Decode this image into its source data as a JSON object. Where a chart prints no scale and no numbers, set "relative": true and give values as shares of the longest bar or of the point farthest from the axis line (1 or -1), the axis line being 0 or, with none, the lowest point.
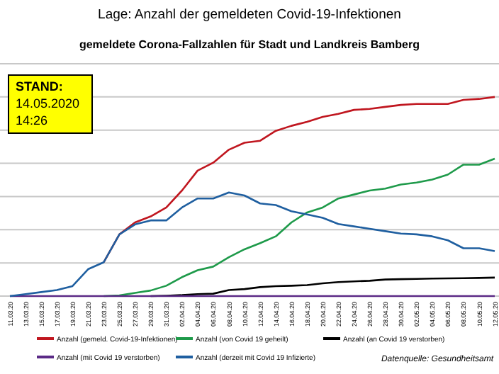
{
  "chart_data": {
    "type": "line",
    "title": "Lage: Anzahl der gemeldeten Covid-19-Infektionen",
    "subtitle": "gemeldete Corona-Fallzahlen für Stadt und Landkreis Bamberg",
    "categories": [
      "11.03.20",
      "13.03.20",
      "15.03.20",
      "17.03.20",
      "19.03.20",
      "21.03.20",
      "23.03.20",
      "25.03.20",
      "27.03.20",
      "29.03.20",
      "31.03.20",
      "02.04.20",
      "04.04.20",
      "06.04.20",
      "08.04.20",
      "10.04.20",
      "12.04.20",
      "14.04.20",
      "16.04.20",
      "18.04.20",
      "20.04.20",
      "22.04.20",
      "24.04.20",
      "26.04.20",
      "28.04.20",
      "30.04.20",
      "02.05.20",
      "04.05.20",
      "06.05.20",
      "08.05.20",
      "10.05.20",
      "12.05.20"
    ],
    "relative": true,
    "grid": "y",
    "legend": "bottom",
    "marker": "none",
    "line_style": "solid",
    "series": [
      {
        "name": "Anzahl (gemeld. Covid-19-Infektionen)",
        "color": "#c0161f",
        "values": [
          null,
          null,
          null,
          null,
          null,
          null,
          0.17,
          0.31,
          0.37,
          0.4,
          0.445,
          0.53,
          0.63,
          0.67,
          0.735,
          0.77,
          0.78,
          0.83,
          0.855,
          0.875,
          0.9,
          0.915,
          0.935,
          0.94,
          0.95,
          0.96,
          0.965,
          0.965,
          0.965,
          0.985,
          0.99,
          1
        ]
      },
      {
        "name": "Anzahl (von Covid 19 geheilt)",
        "color": "#1e9a4a",
        "values": [
          null,
          null,
          null,
          null,
          null,
          null,
          0,
          0.003,
          0.016,
          0.028,
          0.052,
          0.095,
          0.13,
          0.148,
          0.195,
          0.235,
          0.266,
          0.3,
          0.37,
          0.42,
          0.445,
          0.49,
          0.51,
          0.53,
          0.54,
          0.56,
          0.57,
          0.585,
          0.61,
          0.66,
          0.66,
          0.69
        ]
      },
      {
        "name": "Anzahl (an Covid 19 verstorben)",
        "color": "#000000",
        "values": [
          null,
          null,
          null,
          null,
          null,
          null,
          null,
          null,
          null,
          0,
          0.002,
          0.005,
          0.01,
          0.012,
          0.03,
          0.035,
          0.045,
          0.05,
          0.052,
          0.055,
          0.064,
          0.07,
          0.074,
          0.077,
          0.083,
          0.085,
          0.086,
          0.088,
          0.089,
          0.09,
          0.091,
          0.093
        ]
      },
      {
        "name": "Anzahl (mit Covid 19 verstorben)",
        "color": "#5b2a86",
        "values": [
          0,
          0,
          0,
          0,
          0,
          0,
          0,
          0,
          0,
          0,
          0,
          0,
          0,
          0,
          0,
          0,
          0,
          0,
          0,
          0,
          0,
          0,
          0,
          0,
          0,
          0,
          0,
          0,
          0,
          0,
          0,
          0
        ]
      },
      {
        "name": "Anzahl (derzeit mit Covid 19 Infizierte)",
        "color": "#1f5fa0",
        "values": [
          0,
          0.01,
          0.02,
          0.03,
          0.05,
          0.135,
          0.17,
          0.31,
          0.36,
          0.38,
          0.38,
          0.445,
          0.49,
          0.49,
          0.52,
          0.505,
          0.465,
          0.457,
          0.426,
          0.41,
          0.393,
          0.362,
          0.35,
          0.338,
          0.326,
          0.314,
          0.31,
          0.3,
          0.28,
          0.24,
          0.24,
          0.226
        ]
      }
    ],
    "annotations": [
      "STAND:\n14.05.2020\n14:26",
      "Datenquelle: Gesundheitsamt"
    ]
  }
}
